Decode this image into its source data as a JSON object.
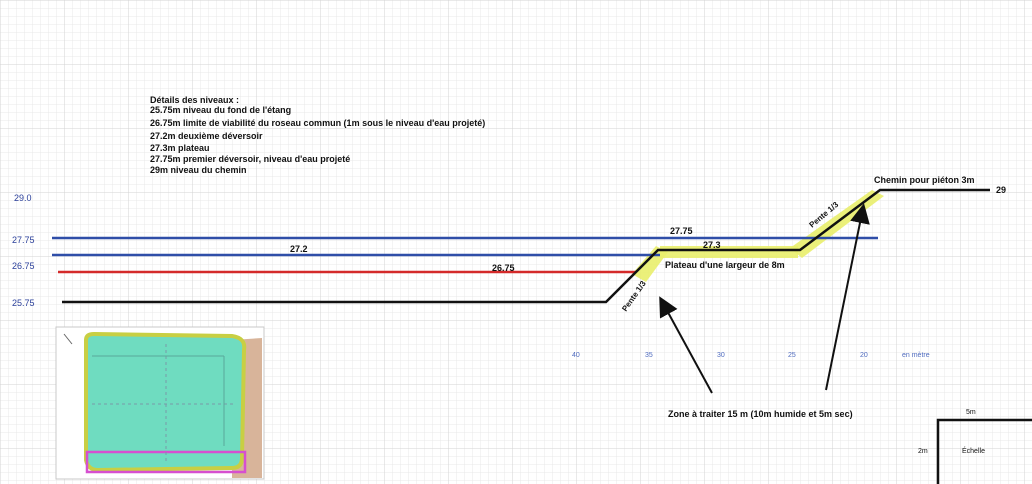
{
  "legend": {
    "title": "Détails des niveaux :",
    "lines": [
      "25.75m niveau du fond de l'étang",
      "26.75m limite de viabilité du roseau commun (1m sous le niveau d'eau projeté)",
      "27.2m deuxième déversoir",
      "27.3m plateau",
      "27.75m premier déversoir, niveau d'eau projeté",
      "29m niveau du chemin"
    ]
  },
  "axis_levels": {
    "l29": "29.0",
    "l2775": "27.75",
    "l2675": "26.75",
    "l2575": "25.75"
  },
  "line_labels": {
    "l272": "27.2",
    "l2675": "26.75",
    "l2775": "27.75",
    "l273": "27.3",
    "l29": "29"
  },
  "annotations": {
    "pente_low": "Pente 1/3",
    "pente_high": "Pente 1/3",
    "plateau": "Plateau d'une largeur de 8m",
    "chemin": "Chemin pour piéton 3m",
    "zone": "Zone à traiter 15 m (10m humide et 5m sec)"
  },
  "distance_ticks": [
    "40",
    "35",
    "30",
    "25",
    "20"
  ],
  "distance_unit": "en mètre",
  "scale": {
    "width_label": "5m",
    "height_label": "2m",
    "title": "Échelle"
  },
  "colors": {
    "grid_minor": "#e6e6e6",
    "grid_major": "#cfcfcf",
    "blue_line": "#2f4ea8",
    "red_line": "#d42a2a",
    "profile": "#111111",
    "highlight": "#e8ec6a",
    "map_green": "#6fdcc0",
    "map_outline": "#d64fd0",
    "map_tan": "#d8b49a"
  }
}
